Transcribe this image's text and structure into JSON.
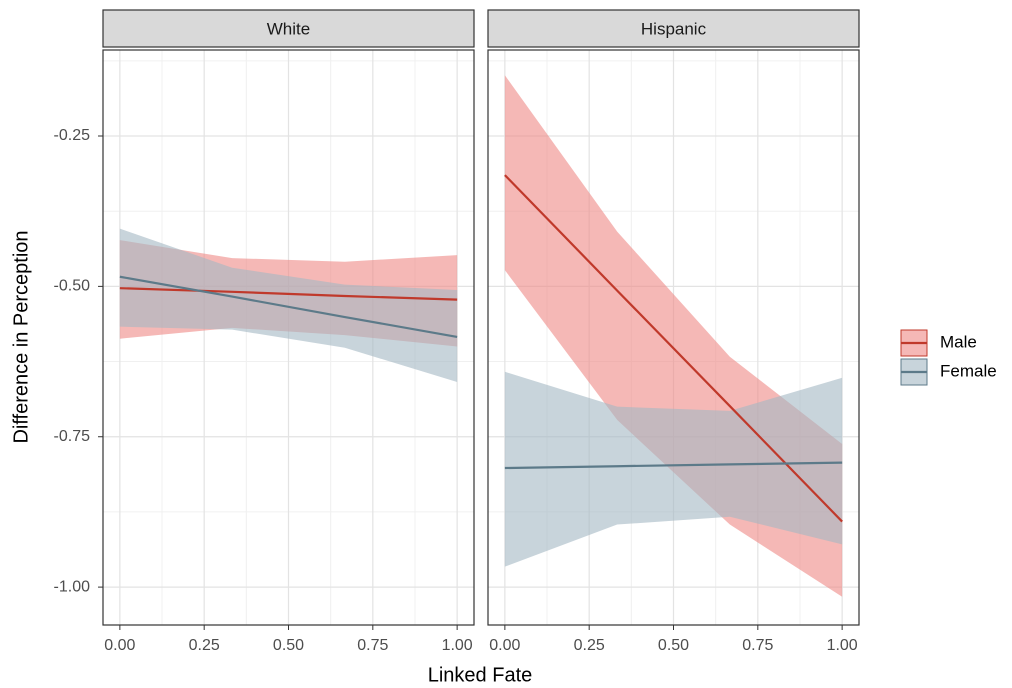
{
  "chart_data": {
    "type": "line",
    "xlabel": "Linked Fate",
    "ylabel": "Difference in Perception",
    "xlim": [
      -0.05,
      1.05
    ],
    "ylim": [
      -1.063,
      -0.107
    ],
    "xticks": [
      {
        "value": 0,
        "label": "0.00"
      },
      0.25,
      {
        "value": 0.5,
        "label": "0.50"
      },
      0.75,
      {
        "value": 1,
        "label": "1.00"
      }
    ],
    "yticks": [
      -0.25,
      {
        "value": -0.5,
        "label": "-0.50"
      },
      -0.75,
      {
        "value": -1,
        "label": "-1.00"
      }
    ],
    "minor_xticks": [
      0.125,
      0.375,
      0.625,
      0.875
    ],
    "minor_yticks": [
      -0.125,
      -0.375,
      -0.625,
      -0.875
    ],
    "grid": true,
    "legend_position": "right",
    "legend": [
      {
        "name": "Male",
        "color": "#c0392b",
        "band_color": "#ee8985"
      },
      {
        "name": "Female",
        "color": "#5c7a89",
        "band_color": "#a3b7c3"
      }
    ],
    "panels": [
      {
        "title": "White",
        "x": [
          0,
          0.333,
          0.667,
          1
        ],
        "series": [
          {
            "values": [
              -0.503,
              -0.509,
              -0.516,
              -0.522
            ],
            "upper": [
              -0.423,
              -0.453,
              -0.459,
              -0.448
            ],
            "lower": [
              -0.587,
              -0.569,
              -0.581,
              -0.6
            ]
          },
          {
            "values": [
              -0.484,
              -0.517,
              -0.551,
              -0.584
            ],
            "upper": [
              -0.404,
              -0.469,
              -0.497,
              -0.506
            ],
            "lower": [
              -0.567,
              -0.572,
              -0.602,
              -0.659
            ]
          }
        ]
      },
      {
        "title": "Hispanic",
        "x": [
          0,
          0.333,
          0.667,
          1
        ],
        "series": [
          {
            "values": [
              -0.315,
              -0.507,
              -0.699,
              -0.891
            ],
            "upper": [
              -0.149,
              -0.409,
              -0.617,
              -0.762
            ],
            "lower": [
              -0.473,
              -0.722,
              -0.896,
              -1.016
            ]
          },
          {
            "values": [
              -0.802,
              -0.799,
              -0.796,
              -0.793
            ],
            "upper": [
              -0.642,
              -0.7,
              -0.707,
              -0.652
            ],
            "lower": [
              -0.966,
              -0.896,
              -0.883,
              -0.929
            ]
          }
        ]
      }
    ]
  }
}
